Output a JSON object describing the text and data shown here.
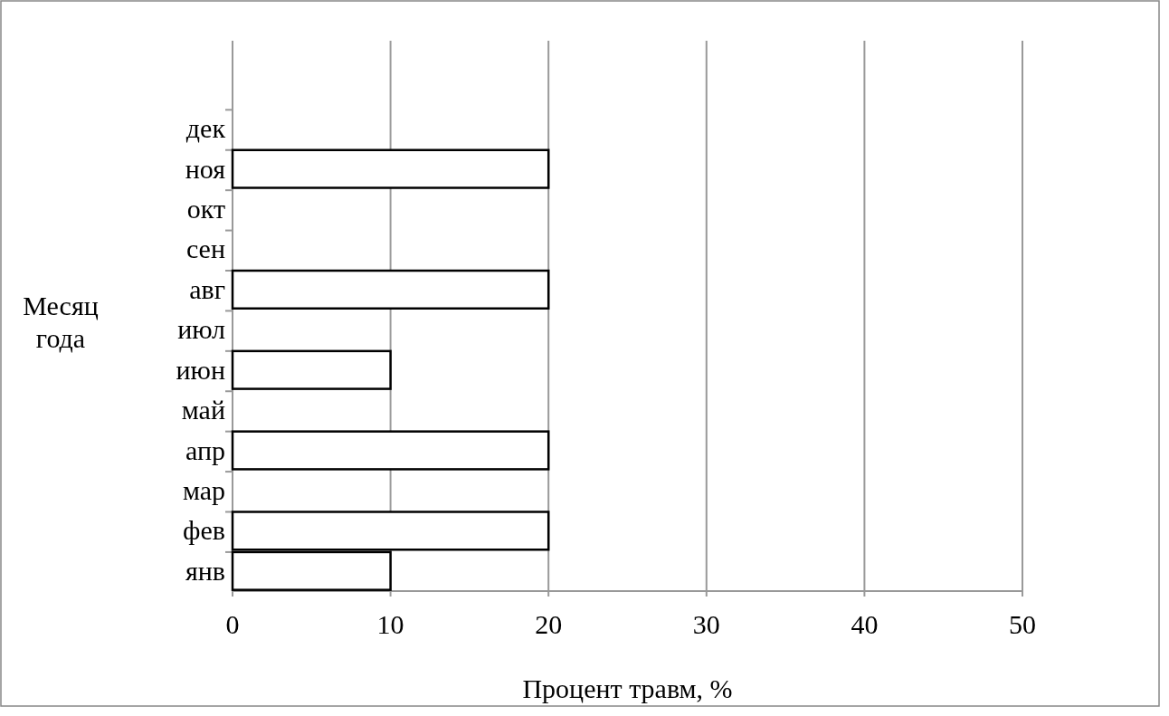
{
  "chart_data": {
    "type": "bar",
    "orientation": "horizontal",
    "xlabel": "Процент травм, %",
    "ylabel": "Месяц года",
    "categories": [
      "дек",
      "ноя",
      "окт",
      "сен",
      "авг",
      "июл",
      "июн",
      "май",
      "апр",
      "мар",
      "фев",
      "янв"
    ],
    "values": [
      0,
      20,
      0,
      0,
      20,
      0,
      10,
      0,
      20,
      0,
      20,
      10
    ],
    "color": "#ffffff",
    "xlim": [
      0,
      50
    ],
    "xticks": [
      0,
      10,
      20,
      30,
      40,
      50
    ],
    "grid": "x"
  }
}
